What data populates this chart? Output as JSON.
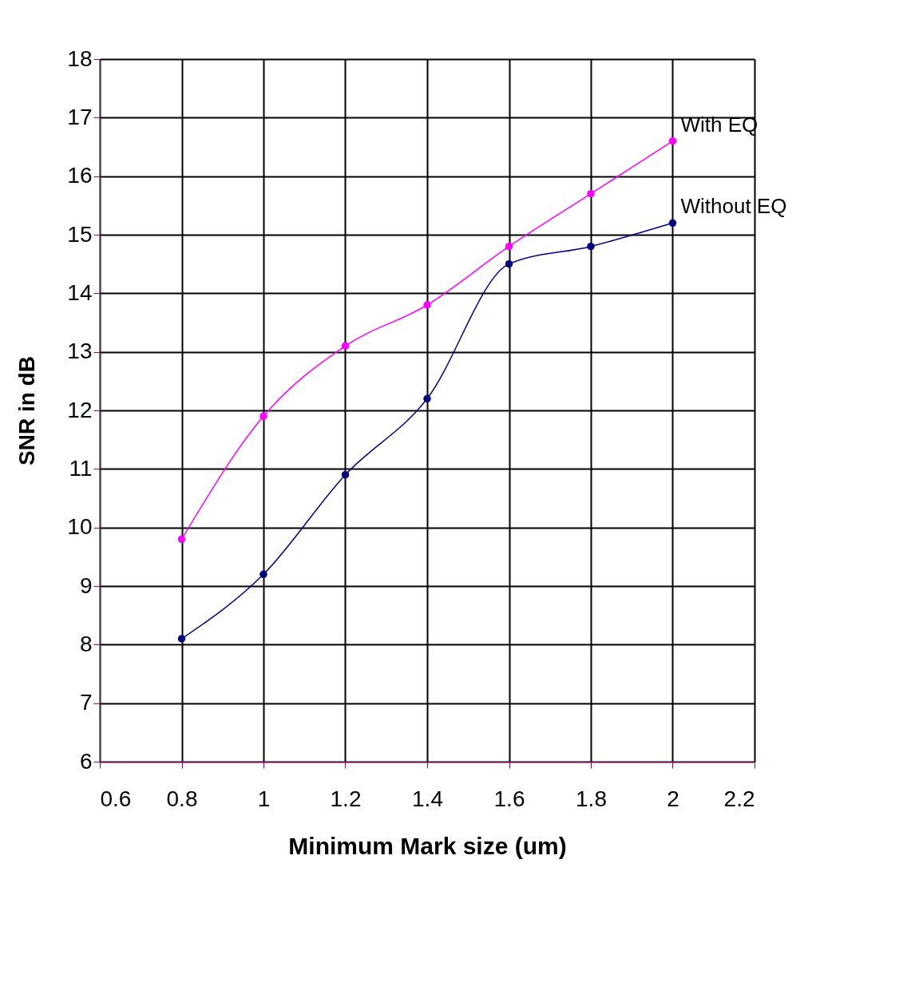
{
  "chart_data": {
    "type": "line",
    "xlabel": "Minimum Mark size (um)",
    "ylabel": "SNR in dB",
    "x": [
      0.8,
      1.0,
      1.2,
      1.4,
      1.6,
      1.8,
      2.0
    ],
    "series": [
      {
        "name": "With EQ",
        "color": "#ff00ff",
        "values": [
          9.8,
          11.9,
          13.1,
          13.8,
          14.8,
          15.7,
          16.6
        ]
      },
      {
        "name": "Without EQ",
        "color": "#000080",
        "values": [
          8.1,
          9.2,
          10.9,
          12.2,
          14.5,
          14.8,
          15.2
        ]
      }
    ],
    "xlim": [
      0.6,
      2.2
    ],
    "xticks": [
      0.6,
      0.8,
      1,
      1.2,
      1.4,
      1.6,
      1.8,
      2,
      2.2
    ],
    "ylim": [
      6,
      18
    ],
    "yticks": [
      6,
      7,
      8,
      9,
      10,
      11,
      12,
      13,
      14,
      15,
      16,
      17,
      18
    ],
    "grid": true,
    "marker": "circle",
    "line_style": "solid",
    "legend": false
  }
}
